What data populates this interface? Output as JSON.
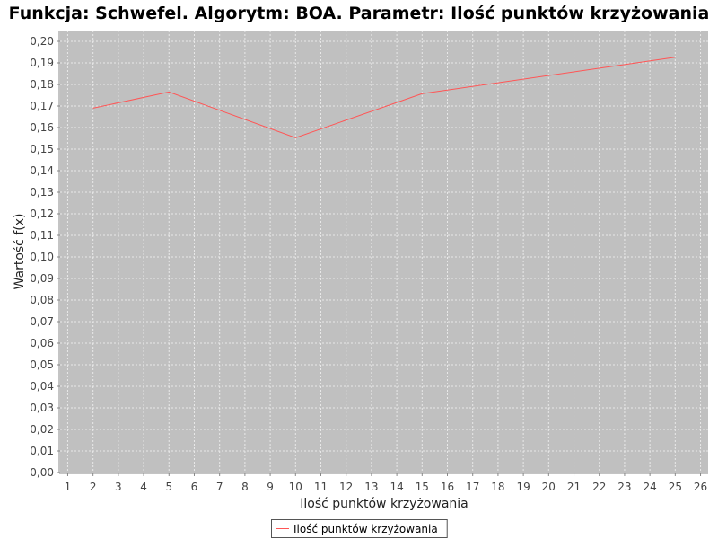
{
  "chart_data": {
    "type": "line",
    "title": "Funkcja: Schwefel. Algorytm: BOA. Parametr: Ilość punktów krzyżowania",
    "xlabel": "Ilość punktów krzyżowania",
    "ylabel": "Wartość f(x)",
    "xlim": [
      0.7,
      26.3
    ],
    "ylim": [
      0,
      0.205
    ],
    "x_ticks": [
      "1",
      "2",
      "3",
      "4",
      "5",
      "6",
      "7",
      "8",
      "9",
      "10",
      "11",
      "12",
      "13",
      "14",
      "15",
      "16",
      "17",
      "18",
      "19",
      "20",
      "21",
      "22",
      "23",
      "24",
      "25",
      "26"
    ],
    "y_ticks": [
      "0,00",
      "0,01",
      "0,02",
      "0,03",
      "0,04",
      "0,05",
      "0,06",
      "0,07",
      "0,08",
      "0,09",
      "0,10",
      "0,11",
      "0,12",
      "0,13",
      "0,14",
      "0,15",
      "0,16",
      "0,17",
      "0,18",
      "0,19",
      "0,20"
    ],
    "grid": true,
    "legend_position": "bottom-center",
    "series": [
      {
        "name": "Ilość punktów krzyżowania",
        "color": "#ff5555",
        "x": [
          2,
          5,
          10,
          15,
          25
        ],
        "y": [
          0.169,
          0.1765,
          0.1553,
          0.1757,
          0.1926
        ]
      }
    ]
  },
  "colors": {
    "plot_background": "#c0c0c0",
    "gridline": "#e8e8e8",
    "line": "#ff5555"
  }
}
